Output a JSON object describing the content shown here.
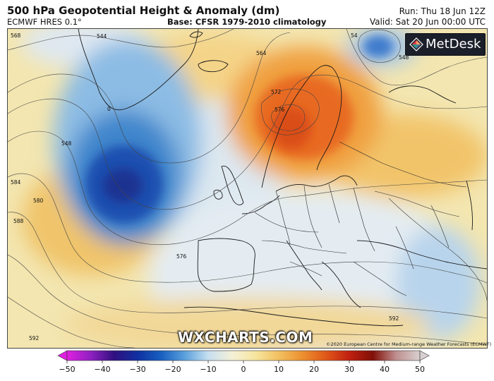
{
  "header": {
    "title": "500 hPa Geopotential Height & Anomaly (dm)",
    "model": "ECMWF HRES 0.1°",
    "base": "Base: CFSR 1979-2010 climatology",
    "run": "Run: Thu 18 Jun 12Z",
    "valid": "Valid: Sat 20 Jun 00:00 UTC"
  },
  "map": {
    "contour_labels": [
      "544",
      "564",
      "572",
      "576",
      "548",
      "584",
      "580",
      "588",
      "576",
      "592",
      "592",
      "54",
      "548",
      "0",
      "568"
    ],
    "watermark": "WXCHARTS.COM",
    "copyright": "©2020 European Centre for Medium-range Weather Forecasts (ECMWF)"
  },
  "logo": {
    "text": "MetDesk",
    "icon": "metdesk-diamond-logo-icon"
  },
  "colorbar": {
    "tick_labels": [
      "−50",
      "−40",
      "−30",
      "−20",
      "−10",
      "0",
      "10",
      "20",
      "30",
      "40",
      "50"
    ],
    "range": [
      -50,
      50
    ],
    "colors": [
      "#e020e0",
      "#9020c0",
      "#301080",
      "#1030a0",
      "#1860c0",
      "#5aa0dc",
      "#c6dff0",
      "#f4f0d8",
      "#f6e6a0",
      "#f2c060",
      "#ec9030",
      "#e05818",
      "#c02010",
      "#801008",
      "#c09090",
      "#d8d0d0"
    ]
  }
}
